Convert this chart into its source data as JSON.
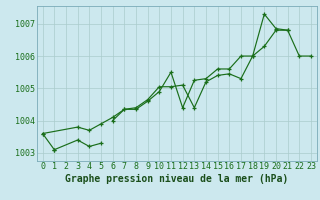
{
  "xlabel": "Graphe pression niveau de la mer (hPa)",
  "bg_color": "#cce8ee",
  "grid_color": "#aacccc",
  "line_color": "#1a6e1a",
  "hours": [
    0,
    1,
    2,
    3,
    4,
    5,
    6,
    7,
    8,
    9,
    10,
    11,
    12,
    13,
    14,
    15,
    16,
    17,
    18,
    19,
    20,
    21,
    22,
    23
  ],
  "series": [
    [
      1003.6,
      1003.1,
      null,
      1003.4,
      1003.2,
      1003.3,
      null,
      null,
      null,
      null,
      null,
      null,
      null,
      null,
      null,
      null,
      null,
      null,
      null,
      null,
      null,
      null,
      null,
      null
    ],
    [
      1003.6,
      null,
      null,
      1003.8,
      1003.7,
      1003.9,
      1004.1,
      1004.35,
      1004.4,
      1004.65,
      1005.05,
      1005.05,
      1005.1,
      1004.4,
      1005.2,
      1005.4,
      1005.45,
      1005.3,
      1006.0,
      1007.3,
      1006.85,
      1006.8,
      null,
      null
    ],
    [
      null,
      1003.1,
      null,
      null,
      null,
      null,
      null,
      null,
      null,
      null,
      null,
      null,
      null,
      null,
      null,
      null,
      null,
      null,
      null,
      null,
      null,
      null,
      null,
      null
    ],
    [
      null,
      null,
      null,
      null,
      null,
      null,
      1004.0,
      1004.35,
      1004.35,
      1004.6,
      1004.9,
      1005.5,
      1004.4,
      1005.25,
      1005.3,
      1005.6,
      1005.6,
      1006.0,
      1006.0,
      1006.3,
      1006.8,
      1006.8,
      1006.0,
      1006.0
    ]
  ],
  "ylim_min": 1002.75,
  "ylim_max": 1007.55,
  "yticks": [
    1003,
    1004,
    1005,
    1006,
    1007
  ],
  "xticks": [
    0,
    1,
    2,
    3,
    4,
    5,
    6,
    7,
    8,
    9,
    10,
    11,
    12,
    13,
    14,
    15,
    16,
    17,
    18,
    19,
    20,
    21,
    22,
    23
  ],
  "xlabel_fontsize": 7.0,
  "tick_fontsize": 6.0,
  "lw": 0.85,
  "marker_size": 3.0
}
